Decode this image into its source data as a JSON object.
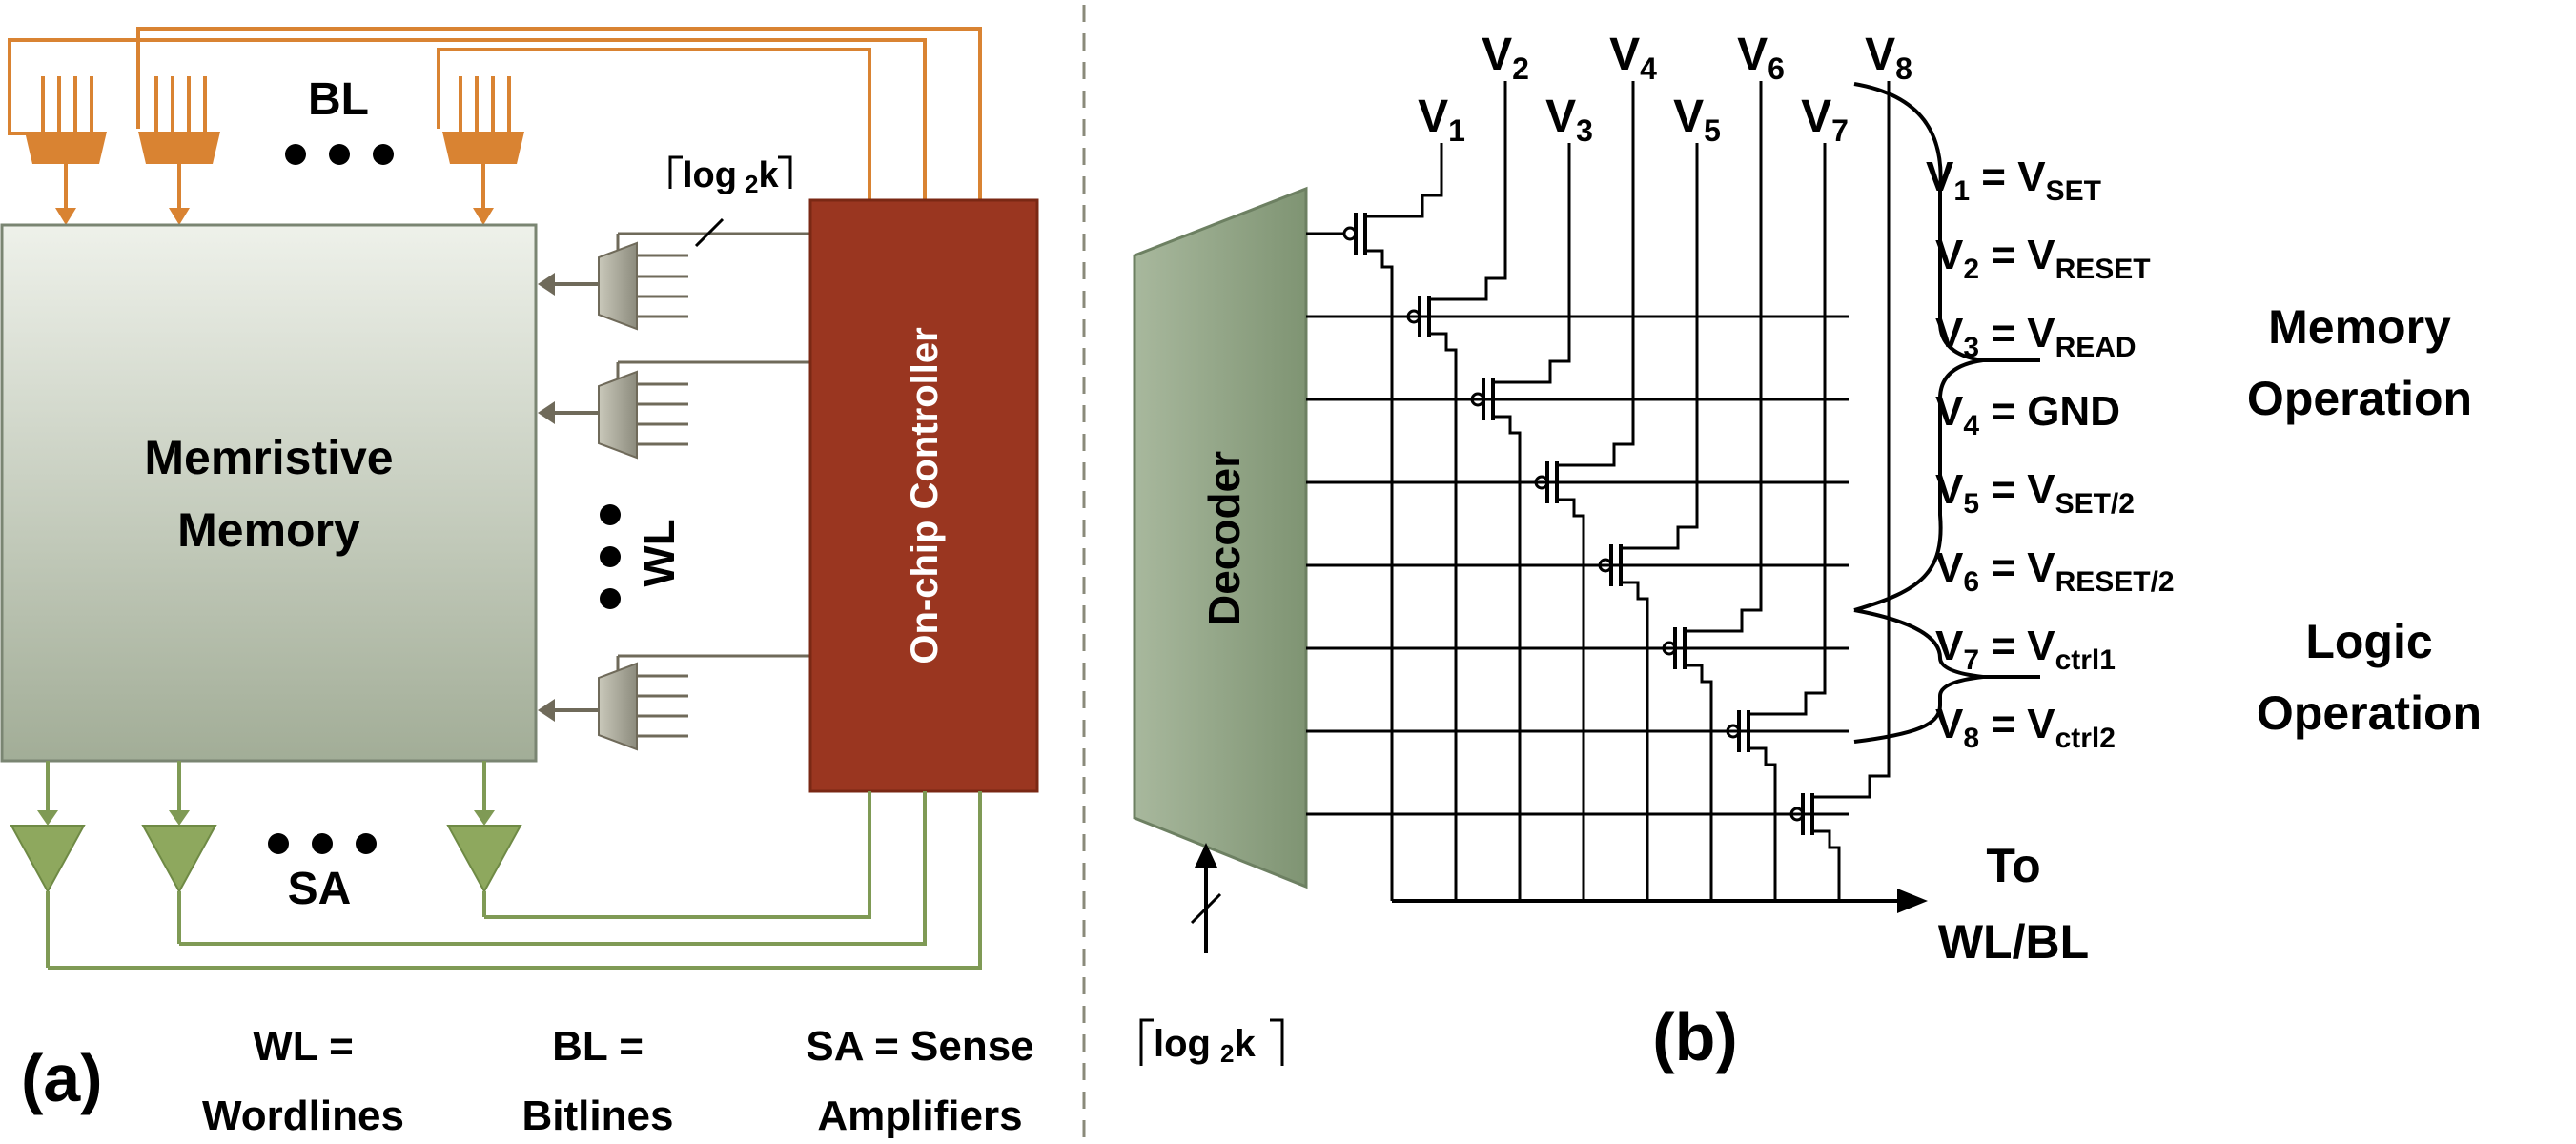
{
  "panel_a": {
    "label": "(a)",
    "memory_block": {
      "line1": "Memristive",
      "line2": "Memory"
    },
    "controller": "On-chip Controller",
    "bl_label": "BL",
    "wl_label": "WL",
    "sa_label": "SA",
    "mux_width_label": {
      "main": "log",
      "sub": "2",
      "tail": "k"
    },
    "legend": {
      "wl": {
        "line1": "WL =",
        "line2": "Wordlines"
      },
      "bl": {
        "line1": "BL =",
        "line2": "Bitlines"
      },
      "sa": {
        "line1": "SA = Sense",
        "line2": "Amplifiers"
      }
    }
  },
  "panel_b": {
    "label": "(b)",
    "decoder": "Decoder",
    "decoder_input_label": {
      "main": "log",
      "sub": "2",
      "tail": "k"
    },
    "output_label": {
      "line1": "To",
      "line2": "WL/BL"
    },
    "voltage_lines": [
      {
        "main": "V",
        "sub": "1"
      },
      {
        "main": "V",
        "sub": "2"
      },
      {
        "main": "V",
        "sub": "3"
      },
      {
        "main": "V",
        "sub": "4"
      },
      {
        "main": "V",
        "sub": "5"
      },
      {
        "main": "V",
        "sub": "6"
      },
      {
        "main": "V",
        "sub": "7"
      },
      {
        "main": "V",
        "sub": "8"
      }
    ],
    "assignments": [
      {
        "lhs": "V",
        "lhs_sub": "1",
        "rhs": "V",
        "rhs_sub": "SET"
      },
      {
        "lhs": "V",
        "lhs_sub": "2",
        "rhs": "V",
        "rhs_sub": "RESET"
      },
      {
        "lhs": "V",
        "lhs_sub": "3",
        "rhs": "V",
        "rhs_sub": "READ"
      },
      {
        "lhs": "V",
        "lhs_sub": "4",
        "rhs": "GND",
        "rhs_sub": ""
      },
      {
        "lhs": "V",
        "lhs_sub": "5",
        "rhs": "V",
        "rhs_sub": "SET/2"
      },
      {
        "lhs": "V",
        "lhs_sub": "6",
        "rhs": "V",
        "rhs_sub": "RESET/2"
      },
      {
        "lhs": "V",
        "lhs_sub": "7",
        "rhs": "V",
        "rhs_sub": "ctrl1"
      },
      {
        "lhs": "V",
        "lhs_sub": "8",
        "rhs": "V",
        "rhs_sub": "ctrl2"
      }
    ],
    "group_memory": {
      "line1": "Memory",
      "line2": "Operation"
    },
    "group_logic": {
      "line1": "Logic",
      "line2": "Operation"
    }
  },
  "colors": {
    "mux_orange": "#d98332",
    "memory_fill_top": "#eef1ea",
    "memory_fill_bottom": "#9faa94",
    "controller_red": "#9a3620",
    "sense_amp_green": "#8ea85e",
    "wire_green": "#7f9a55",
    "wl_mux_gray": "#9c9b8e",
    "decoder_green": "#95a98a",
    "wire_dark": "#000000",
    "arrow_gray": "#6f6a5a"
  }
}
